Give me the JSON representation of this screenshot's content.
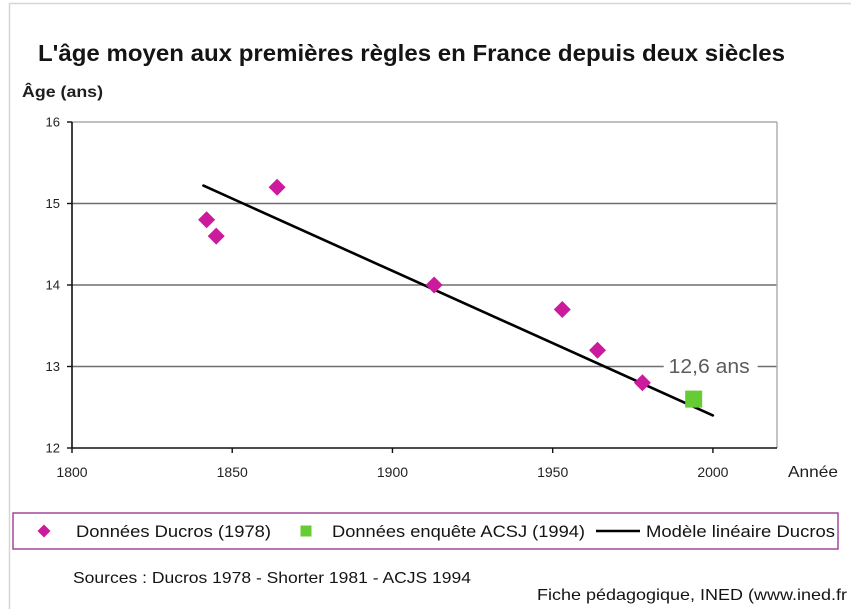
{
  "chart_data": {
    "type": "scatter",
    "title": "L'âge moyen aux premières règles en France depuis deux siècles",
    "ylabel": "Âge (ans)",
    "xlabel": "Année",
    "xlim": [
      1800,
      2020
    ],
    "ylim": [
      12,
      16
    ],
    "xticks": [
      1800,
      1850,
      1900,
      1950,
      2000
    ],
    "yticks": [
      12,
      13,
      14,
      15,
      16
    ],
    "grid": "horizontal",
    "legend": "bottom",
    "series": [
      {
        "name": "Données Ducros (1978)",
        "type": "scatter",
        "marker": "diamond",
        "color": "#cc1a9c",
        "x": [
          1842,
          1845,
          1864,
          1913,
          1953,
          1964,
          1978
        ],
        "y": [
          14.8,
          14.6,
          15.2,
          14.0,
          13.7,
          13.2,
          12.8
        ]
      },
      {
        "name": "Données enquête ACSJ (1994)",
        "type": "scatter",
        "marker": "square",
        "color": "#66cc33",
        "x": [
          1994
        ],
        "y": [
          12.6
        ]
      },
      {
        "name": "Modèle linéaire Ducros",
        "type": "line",
        "color": "#000000",
        "x": [
          1841,
          2000
        ],
        "y": [
          15.22,
          12.4
        ]
      }
    ],
    "annotations": [
      {
        "text": "12,6 ans"
      }
    ]
  },
  "sources": "Sources : Ducros 1978 - Shorter 1981 - ACJS 1994",
  "credit": "Fiche pédagogique, INED (www.ined.fr"
}
